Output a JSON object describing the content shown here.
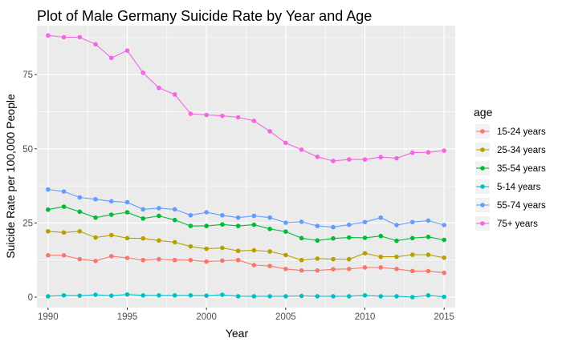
{
  "chart_data": {
    "type": "line",
    "title": "Plot of Male Germany Suicide Rate by Year and Age",
    "xlabel": "Year",
    "ylabel": "Suicide Rate per 100,000 People",
    "xlim": [
      1989.3,
      2015.7
    ],
    "ylim": [
      -3.5,
      91.5
    ],
    "xticks": [
      1990,
      1995,
      2000,
      2005,
      2010,
      2015
    ],
    "yticks": [
      0,
      25,
      50,
      75
    ],
    "grid": true,
    "legend": {
      "title": "age",
      "position": "right"
    },
    "x": [
      1990,
      1991,
      1992,
      1993,
      1994,
      1995,
      1996,
      1997,
      1998,
      1999,
      2000,
      2001,
      2002,
      2003,
      2004,
      2005,
      2006,
      2007,
      2008,
      2009,
      2010,
      2011,
      2012,
      2013,
      2014,
      2015
    ],
    "series": [
      {
        "name": "15-24 years",
        "color": "#F8766D",
        "values": [
          14.1,
          14.1,
          12.8,
          12.2,
          13.8,
          13.2,
          12.5,
          12.8,
          12.5,
          12.5,
          12.0,
          12.3,
          12.5,
          10.8,
          10.5,
          9.5,
          9.0,
          9.0,
          9.4,
          9.5,
          10.0,
          10.0,
          9.5,
          8.8,
          8.8,
          8.2
        ]
      },
      {
        "name": "25-34 years",
        "color": "#B79F00",
        "values": [
          22.2,
          21.8,
          22.2,
          20.1,
          20.9,
          19.9,
          19.8,
          19.1,
          18.5,
          17.1,
          16.3,
          16.6,
          15.6,
          15.8,
          15.4,
          14.2,
          12.5,
          13.0,
          12.8,
          12.8,
          14.8,
          13.6,
          13.6,
          14.3,
          14.3,
          13.3
        ]
      },
      {
        "name": "35-54 years",
        "color": "#00BA38",
        "values": [
          29.5,
          30.5,
          28.8,
          26.8,
          27.8,
          28.6,
          26.5,
          27.4,
          26.0,
          24.0,
          24.0,
          24.5,
          24.0,
          24.4,
          23.0,
          22.1,
          19.9,
          19.1,
          19.8,
          20.1,
          20.0,
          20.6,
          19.0,
          19.9,
          20.3,
          19.3
        ]
      },
      {
        "name": "5-14 years",
        "color": "#00BFC4",
        "values": [
          0.3,
          0.6,
          0.5,
          0.8,
          0.5,
          0.9,
          0.6,
          0.6,
          0.6,
          0.6,
          0.5,
          0.8,
          0.3,
          0.3,
          0.3,
          0.3,
          0.4,
          0.3,
          0.3,
          0.3,
          0.6,
          0.3,
          0.3,
          0.0,
          0.6,
          0.1
        ]
      },
      {
        "name": "55-74 years",
        "color": "#619CFF",
        "values": [
          36.3,
          35.6,
          33.6,
          33.0,
          32.3,
          32.0,
          29.6,
          30.0,
          29.6,
          27.6,
          28.6,
          27.6,
          26.8,
          27.4,
          26.8,
          25.1,
          25.4,
          24.0,
          23.6,
          24.4,
          25.3,
          26.8,
          24.3,
          25.3,
          25.8,
          24.3
        ]
      },
      {
        "name": "75+ years",
        "color": "#F564E3",
        "values": [
          88.2,
          87.6,
          87.6,
          85.2,
          80.6,
          83.1,
          75.6,
          70.5,
          68.3,
          61.8,
          61.4,
          61.1,
          60.6,
          59.4,
          55.9,
          52.0,
          49.7,
          47.3,
          45.9,
          46.4,
          46.4,
          47.2,
          46.8,
          48.7,
          48.8,
          49.4
        ]
      }
    ]
  }
}
